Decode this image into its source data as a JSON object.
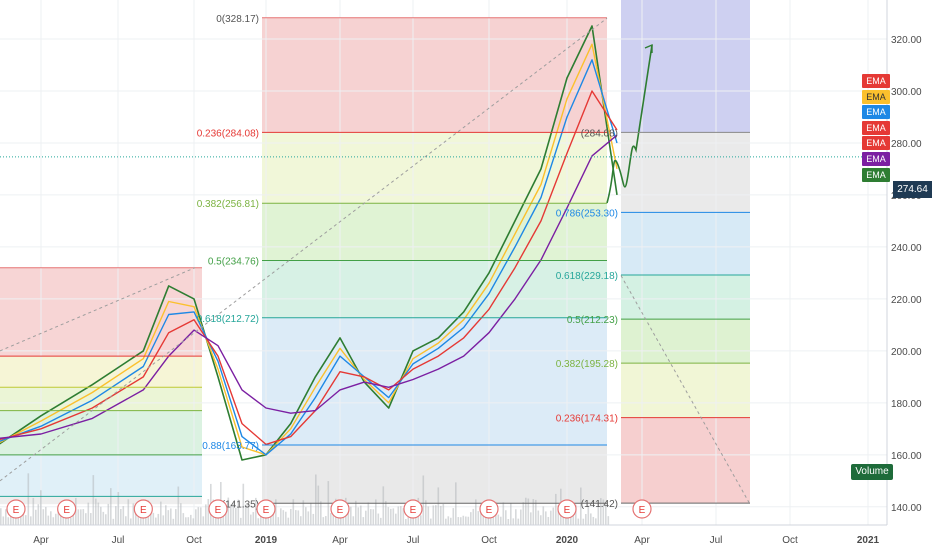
{
  "chart_data": {
    "type": "line",
    "symbol_note": "",
    "y_axis": {
      "ylim": [
        133,
        335
      ],
      "ticks": [
        140.0,
        160.0,
        180.0,
        200.0,
        220.0,
        240.0,
        260.0,
        280.0,
        300.0,
        320.0
      ],
      "tick_labels": [
        "140.00",
        "160.00",
        "180.00",
        "200.00",
        "220.00",
        "240.00",
        "260.00",
        "280.00",
        "300.00",
        "320.00"
      ]
    },
    "x_axis": {
      "tick_labels": [
        "Apr",
        "Jul",
        "Oct",
        "2019",
        "Apr",
        "Jul",
        "Oct",
        "2020",
        "Apr",
        "Jul",
        "Oct",
        "2021"
      ],
      "tick_dates": [
        "2018-04",
        "2018-07",
        "2018-10",
        "2019-01",
        "2019-04",
        "2019-07",
        "2019-10",
        "2020-01",
        "2020-04",
        "2020-07",
        "2020-10",
        "2021-01"
      ]
    },
    "last_price": {
      "value": 274.64,
      "label": "274.64",
      "color": "#1f3a53"
    },
    "series": [
      {
        "color": "#2e7d32",
        "values_date": [
          "2018-02",
          "2018-04",
          "2018-06",
          "2018-08",
          "2018-09",
          "2018-10",
          "2018-11",
          "2018-12",
          "2019-01",
          "2019-02",
          "2019-03",
          "2019-04",
          "2019-05",
          "2019-06",
          "2019-07",
          "2019-08",
          "2019-09",
          "2019-10",
          "2019-11",
          "2019-12",
          "2020-01",
          "2020-02",
          "2020-03"
        ],
        "values": [
          162,
          175,
          187,
          200,
          225,
          220,
          190,
          158,
          160,
          172,
          190,
          205,
          188,
          178,
          200,
          205,
          215,
          230,
          250,
          270,
          305,
          325,
          260
        ]
      },
      {
        "color": "#fbc02d",
        "values_date": [
          "2018-02",
          "2018-04",
          "2018-06",
          "2018-08",
          "2018-09",
          "2018-10",
          "2018-11",
          "2018-12",
          "2019-01",
          "2019-02",
          "2019-03",
          "2019-04",
          "2019-05",
          "2019-06",
          "2019-07",
          "2019-08",
          "2019-09",
          "2019-10",
          "2019-11",
          "2019-12",
          "2020-01",
          "2020-02",
          "2020-03"
        ],
        "values": [
          163,
          173,
          184,
          197,
          219,
          217,
          193,
          163,
          160,
          170,
          186,
          201,
          189,
          180,
          197,
          203,
          212,
          226,
          245,
          264,
          297,
          318,
          270
        ]
      },
      {
        "color": "#1e88e5",
        "values_date": [
          "2018-02",
          "2018-04",
          "2018-06",
          "2018-08",
          "2018-09",
          "2018-10",
          "2018-11",
          "2018-12",
          "2019-01",
          "2019-02",
          "2019-03",
          "2019-04",
          "2019-05",
          "2019-06",
          "2019-07",
          "2019-08",
          "2019-09",
          "2019-10",
          "2019-11",
          "2019-12",
          "2020-01",
          "2020-02",
          "2020-03"
        ],
        "values": [
          164,
          171,
          181,
          194,
          214,
          215,
          196,
          167,
          160,
          168,
          182,
          198,
          190,
          182,
          195,
          201,
          209,
          222,
          240,
          259,
          290,
          312,
          280
        ]
      },
      {
        "color": "#e53935",
        "values_date": [
          "2018-02",
          "2018-04",
          "2018-06",
          "2018-08",
          "2018-09",
          "2018-10",
          "2018-11",
          "2018-12",
          "2019-01",
          "2019-02",
          "2019-03",
          "2019-04",
          "2019-05",
          "2019-06",
          "2019-07",
          "2019-08",
          "2019-09",
          "2019-10",
          "2019-11",
          "2019-12",
          "2020-01",
          "2020-02",
          "2020-03"
        ],
        "values": [
          165,
          170,
          178,
          190,
          207,
          212,
          198,
          172,
          164,
          167,
          177,
          192,
          190,
          185,
          193,
          198,
          205,
          216,
          232,
          250,
          276,
          300,
          285
        ]
      },
      {
        "color": "#7b1fa2",
        "values_date": [
          "2018-02",
          "2018-04",
          "2018-06",
          "2018-08",
          "2018-09",
          "2018-10",
          "2018-11",
          "2018-12",
          "2019-01",
          "2019-02",
          "2019-03",
          "2019-04",
          "2019-05",
          "2019-06",
          "2019-07",
          "2019-08",
          "2019-09",
          "2019-10",
          "2019-11",
          "2019-12",
          "2020-01",
          "2020-02",
          "2020-03"
        ],
        "values": [
          166,
          168,
          174,
          185,
          198,
          208,
          202,
          185,
          178,
          176,
          177,
          185,
          188,
          186,
          189,
          193,
          198,
          207,
          220,
          235,
          255,
          275,
          283
        ]
      }
    ],
    "fib_left_labels": [
      {
        "text": "0.236(284.08)",
        "price": 284.08,
        "color": "#e53935"
      },
      {
        "text": "0.382(256.81)",
        "price": 256.81,
        "color": "#7cb342"
      },
      {
        "text": "0.5(234.76)",
        "price": 234.76,
        "color": "#43a047"
      },
      {
        "text": "0.618(212.72)",
        "price": 212.72,
        "color": "#26a69a"
      },
      {
        "text": "0.88(163.77)",
        "price": 163.77,
        "color": "#1e88e5"
      },
      {
        "text": "(141.35)",
        "price": 141.35,
        "color": "#555555"
      }
    ],
    "fib_right_labels": [
      {
        "text": "0.786(253.30)",
        "price": 253.3,
        "color": "#1e88e5"
      },
      {
        "text": "0.618(229.18)",
        "price": 229.18,
        "color": "#26a69a"
      },
      {
        "text": "0.5(212.23)",
        "price": 212.23,
        "color": "#43a047"
      },
      {
        "text": "0.382(195.28)",
        "price": 195.28,
        "color": "#7cb342"
      },
      {
        "text": "0.236(174.31)",
        "price": 174.31,
        "color": "#e53935"
      },
      {
        "text": "(141.42)",
        "price": 141.42,
        "color": "#555555"
      },
      {
        "text": "(284.08)",
        "price": 284.08,
        "color": "#555555"
      }
    ],
    "fib_top_label": {
      "text": "0(328.17)",
      "price": 328.17,
      "color": "#555555"
    },
    "earnings_marker": "E",
    "earnings_dates": [
      "2018-03",
      "2018-05",
      "2018-08",
      "2018-11",
      "2019-01",
      "2019-04",
      "2019-07",
      "2019-10",
      "2020-01",
      "2020-04"
    ],
    "legend": {
      "labels": [
        "EMA",
        "EMA",
        "EMA",
        "EMA",
        "EMA",
        "EMA",
        "EMA"
      ],
      "colors": [
        "#e53935",
        "#fbc02d",
        "#1e88e5",
        "#e53935",
        "#e53935",
        "#7b1fa2",
        "#2e7d32"
      ]
    },
    "volume_label": "Volume"
  }
}
